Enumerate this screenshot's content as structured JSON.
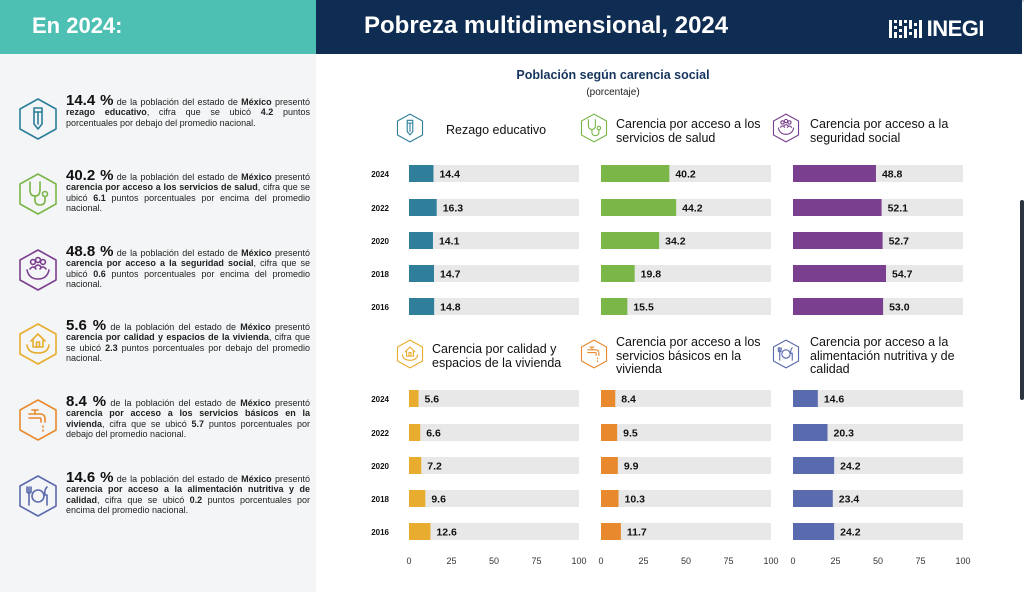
{
  "header": {
    "left_label": "En 2024:",
    "title": "Pobreza multidimensional, 2024",
    "logo": "INEGI"
  },
  "notes": [
    {
      "icon": "pencil-icon",
      "color": "#2a7f9a",
      "pct": "14.4 %",
      "p1": " de la población del estado de ",
      "state": "México",
      "p2": " presentó ",
      "indicator": "rezago educativo",
      "p3": ", cifra que se ubicó ",
      "diff": "4.2",
      "p4": " puntos porcentuales por debajo del promedio nacional."
    },
    {
      "icon": "stethoscope-icon",
      "color": "#7ab648",
      "pct": "40.2 %",
      "p1": " de la población del estado de ",
      "state": "México",
      "p2": " presentó ",
      "indicator": "carencia por acceso a los servicios de salud",
      "p3": ", cifra que se ubicó ",
      "diff": "6.1",
      "p4": " puntos porcentuales por encima del promedio nacional."
    },
    {
      "icon": "people-hands-icon",
      "color": "#7b3f8f",
      "pct": "48.8 %",
      "p1": " de la población del estado de ",
      "state": "México",
      "p2": " presentó ",
      "indicator": "carencia por acceso a la seguridad social",
      "p3": ", cifra que se ubicó ",
      "diff": "0.6",
      "p4": " puntos porcentuales por encima del promedio nacional."
    },
    {
      "icon": "house-hands-icon",
      "color": "#e8ad2e",
      "pct": "5.6 %",
      "p1": " de la población del estado de ",
      "state": "México",
      "p2": " presentó ",
      "indicator": "carencia por calidad y espacios de la vivienda",
      "p3": ", cifra que se ubicó ",
      "diff": "2.3",
      "p4": " puntos porcentuales por debajo del promedio nacional."
    },
    {
      "icon": "faucet-icon",
      "color": "#e8892e",
      "pct": "8.4 %",
      "p1": " de la población del estado de ",
      "state": "México",
      "p2": " presentó ",
      "indicator": "carencia por acceso a los servicios básicos en la vivienda",
      "p3": ", cifra que se ubicó ",
      "diff": "5.7",
      "p4": " puntos porcentuales por debajo del promedio nacional."
    },
    {
      "icon": "plate-cutlery-icon",
      "color": "#5a6aae",
      "pct": "14.6 %",
      "p1": " de la población del estado de ",
      "state": "México",
      "p2": " presentó ",
      "indicator": "carencia por acceso a la alimentación nutritiva y de calidad",
      "p3": ", cifra que se ubicó ",
      "diff": "0.2",
      "p4": " puntos porcentuales por encima del promedio nacional."
    }
  ],
  "chart_data": {
    "type": "bar",
    "title": "Población según carencia social",
    "subtitle": "(porcentaje)",
    "categories": [
      "2024",
      "2022",
      "2020",
      "2018",
      "2016"
    ],
    "xlim": [
      0,
      100
    ],
    "xticks": [
      "0",
      "25",
      "50",
      "75",
      "100"
    ],
    "grid": false,
    "panels": [
      {
        "name": "Rezago educativo",
        "color": "#2f7f9b",
        "icon": "pencil-icon",
        "values": [
          14.4,
          16.3,
          14.1,
          14.7,
          14.8
        ],
        "labels": [
          "14.4",
          "16.3",
          "14.1",
          "14.7",
          "14.8"
        ]
      },
      {
        "name": "Carencia por acceso a los servicios de salud",
        "color": "#7ab648",
        "icon": "stethoscope-icon",
        "values": [
          40.2,
          44.2,
          34.2,
          19.8,
          15.5
        ],
        "labels": [
          "40.2",
          "44.2",
          "34.2",
          "19.8",
          "15.5"
        ]
      },
      {
        "name": "Carencia por acceso a la seguridad social",
        "color": "#7b3f8f",
        "icon": "people-hands-icon",
        "values": [
          48.8,
          52.1,
          52.7,
          54.7,
          53.0
        ],
        "labels": [
          "48.8",
          "52.1",
          "52.7",
          "54.7",
          "53.0"
        ]
      },
      {
        "name": "Carencia por calidad y espacios de la vivienda",
        "color": "#e8ad2e",
        "icon": "house-hands-icon",
        "values": [
          5.6,
          6.6,
          7.2,
          9.6,
          12.6
        ],
        "labels": [
          "5.6",
          "6.6",
          "7.2",
          "9.6",
          "12.6"
        ]
      },
      {
        "name": "Carencia por acceso a los servicios básicos en la vivienda",
        "color": "#e8892e",
        "icon": "faucet-icon",
        "values": [
          8.4,
          9.5,
          9.9,
          10.3,
          11.7
        ],
        "labels": [
          "8.4",
          "9.5",
          "9.9",
          "10.3",
          "11.7"
        ]
      },
      {
        "name": "Carencia por acceso a la alimentación nutritiva y de calidad",
        "color": "#5a6aae",
        "icon": "plate-cutlery-icon",
        "values": [
          14.6,
          20.3,
          24.2,
          23.4,
          24.2
        ],
        "labels": [
          "14.6",
          "20.3",
          "24.2",
          "23.4",
          "24.2"
        ]
      }
    ]
  }
}
